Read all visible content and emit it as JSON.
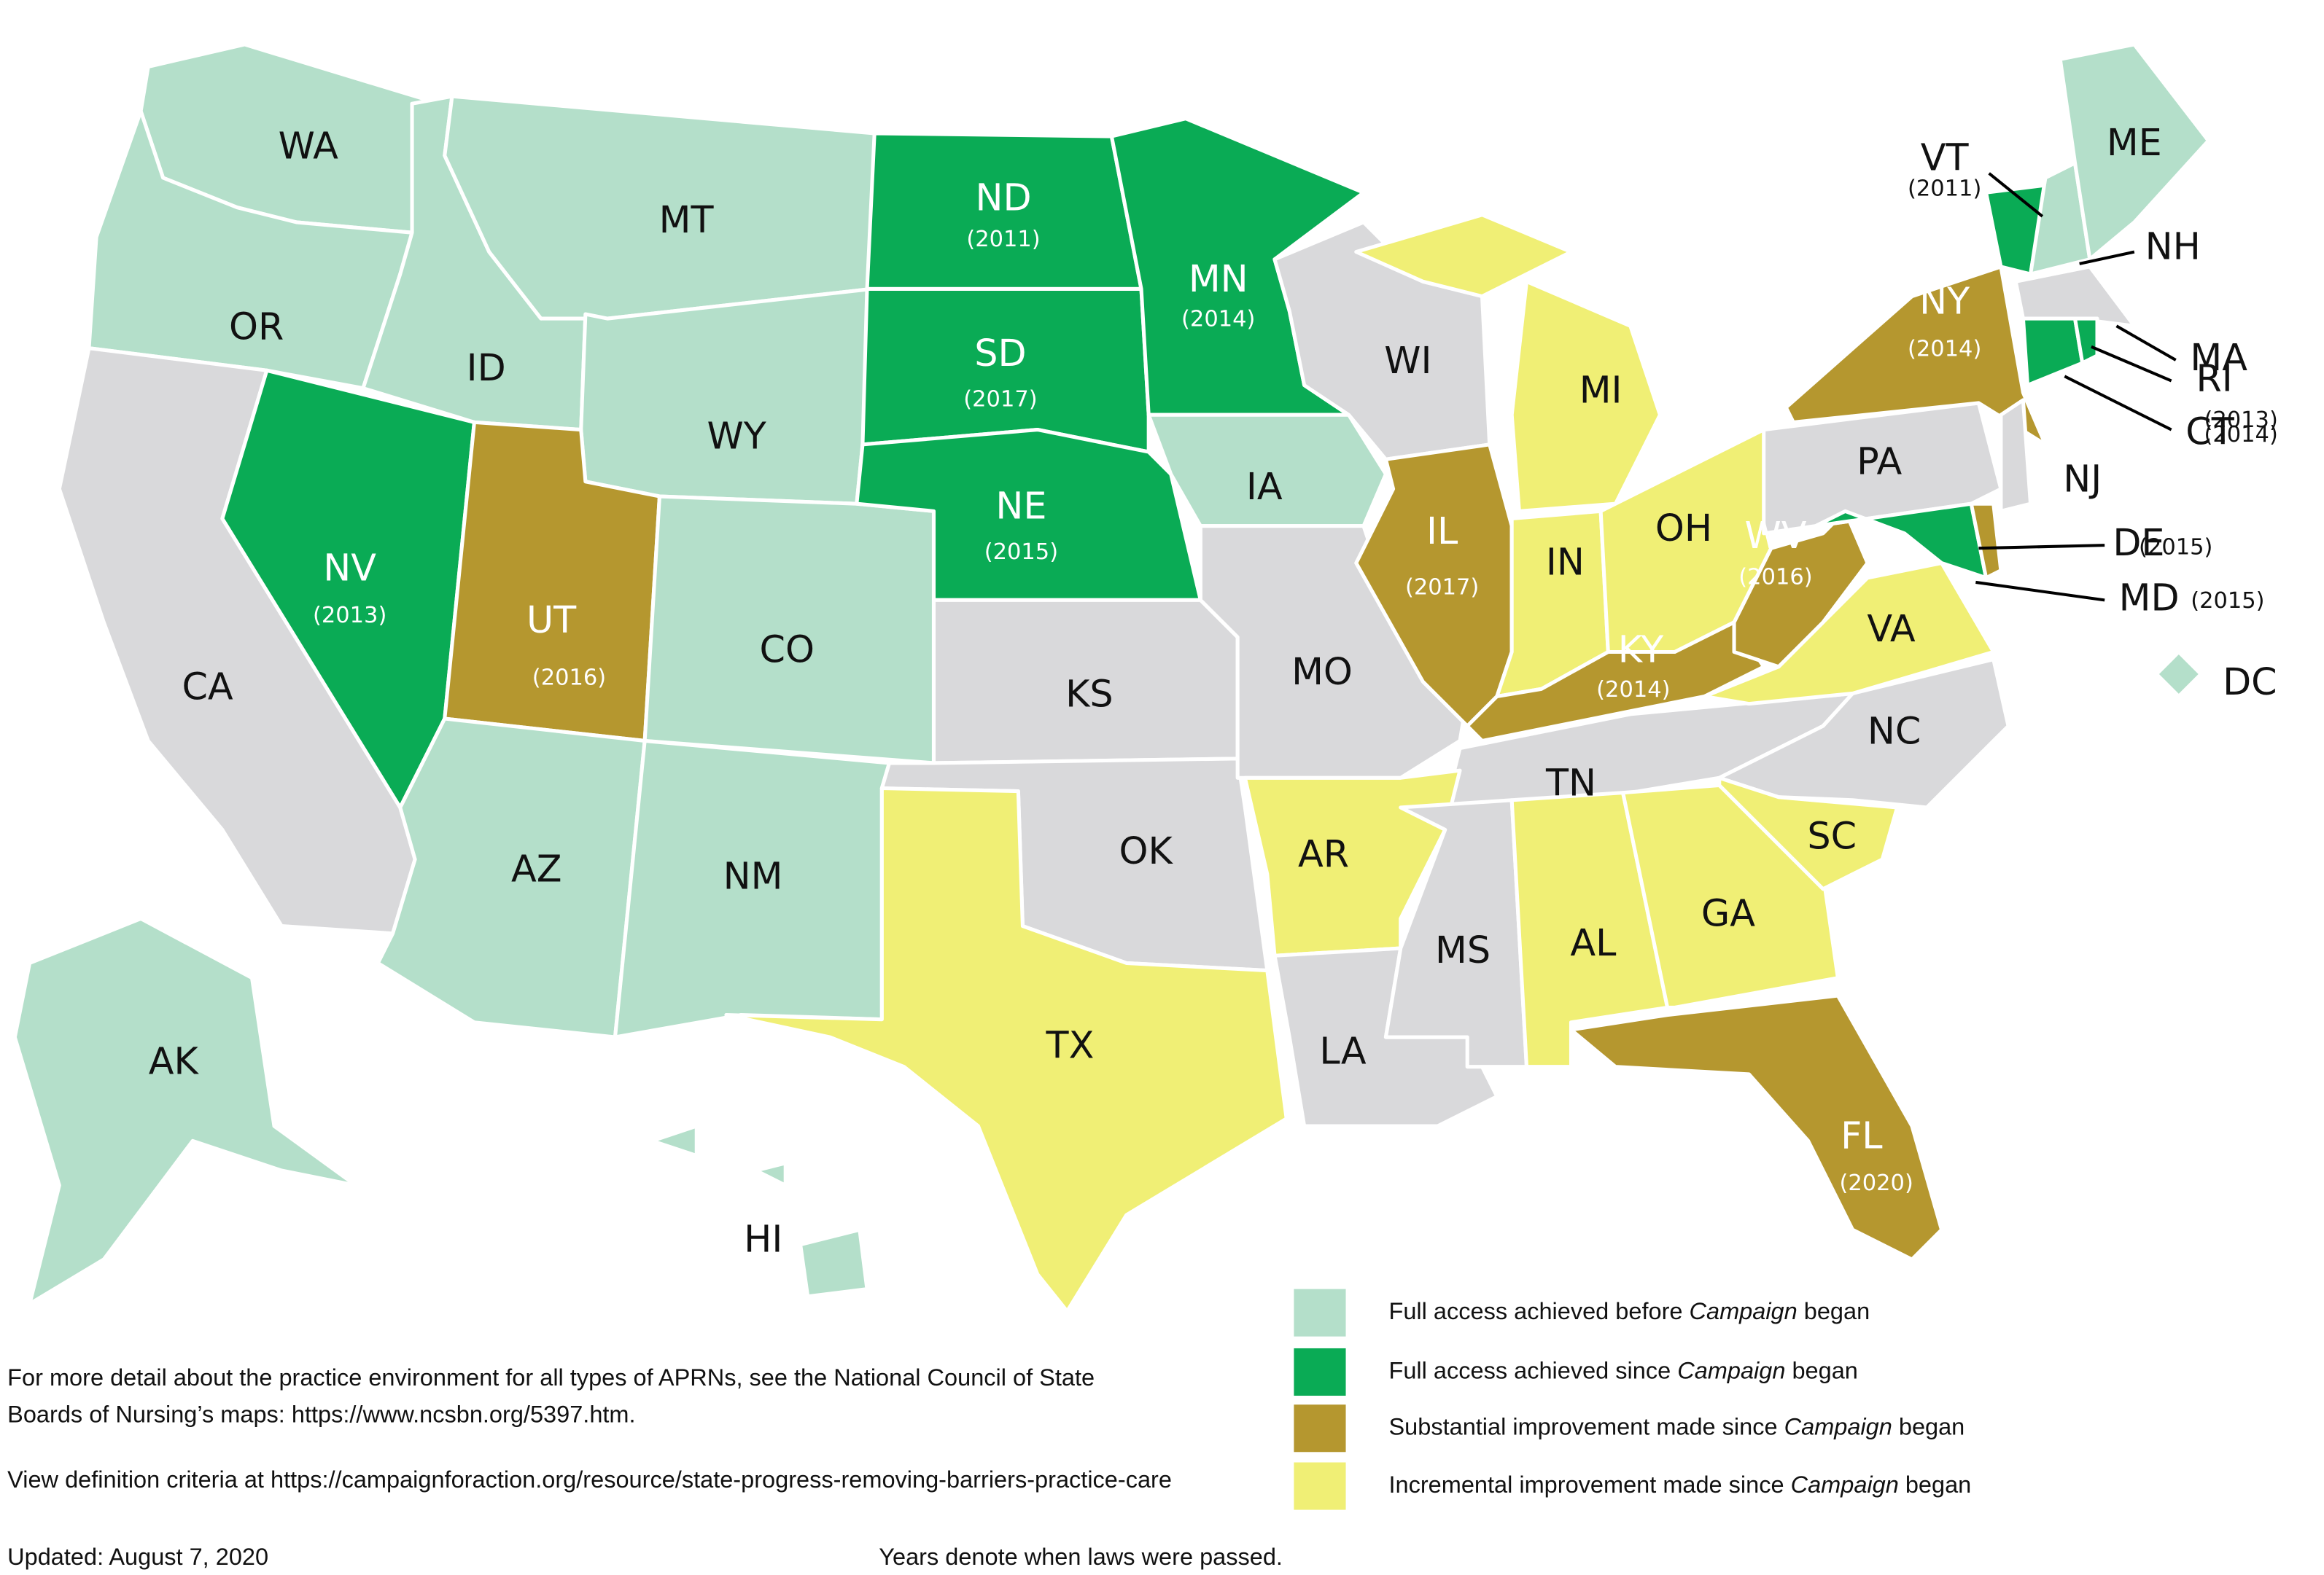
{
  "states": [
    {
      "abbr": "WA",
      "color": "#b4dfca"
    },
    {
      "abbr": "OR",
      "color": "#b4dfca"
    },
    {
      "abbr": "CA",
      "color": "#d9d9db"
    },
    {
      "abbr": "ID",
      "color": "#b4dfca"
    },
    {
      "abbr": "NV",
      "year": "(2013)",
      "color": "#0aab55"
    },
    {
      "abbr": "MT",
      "color": "#b4dfca"
    },
    {
      "abbr": "WY",
      "color": "#b4dfca"
    },
    {
      "abbr": "UT",
      "year": "(2016)",
      "color": "#b5972f"
    },
    {
      "abbr": "AZ",
      "color": "#b4dfca"
    },
    {
      "abbr": "CO",
      "color": "#b4dfca"
    },
    {
      "abbr": "NM",
      "color": "#b4dfca"
    },
    {
      "abbr": "ND",
      "year": "(2011)",
      "color": "#0aab55"
    },
    {
      "abbr": "SD",
      "year": "(2017)",
      "color": "#0aab55"
    },
    {
      "abbr": "NE",
      "year": "(2015)",
      "color": "#0aab55"
    },
    {
      "abbr": "KS",
      "color": "#d9d9db"
    },
    {
      "abbr": "OK",
      "color": "#d9d9db"
    },
    {
      "abbr": "TX",
      "color": "#f0ef75"
    },
    {
      "abbr": "MN",
      "year": "(2014)",
      "color": "#0aab55"
    },
    {
      "abbr": "IA",
      "color": "#b4dfca"
    },
    {
      "abbr": "MO",
      "color": "#d9d9db"
    },
    {
      "abbr": "WI",
      "color": "#d9d9db"
    },
    {
      "abbr": "IL",
      "year": "(2017)",
      "color": "#b5972f"
    },
    {
      "abbr": "MI",
      "color": "#f0ef75"
    },
    {
      "abbr": "IN",
      "color": "#f0ef75"
    },
    {
      "abbr": "OH",
      "color": "#f0ef75"
    },
    {
      "abbr": "KY",
      "year": "(2014)",
      "color": "#b5972f"
    },
    {
      "abbr": "TN",
      "color": "#d9d9db"
    },
    {
      "abbr": "NC",
      "color": "#d9d9db"
    },
    {
      "abbr": "AR",
      "color": "#f0ef75"
    },
    {
      "abbr": "LA",
      "color": "#d9d9db"
    },
    {
      "abbr": "MS",
      "color": "#d9d9db"
    },
    {
      "abbr": "AL",
      "color": "#f0ef75"
    },
    {
      "abbr": "GA",
      "color": "#f0ef75"
    },
    {
      "abbr": "SC",
      "color": "#f0ef75"
    },
    {
      "abbr": "FL",
      "year": "(2020)",
      "color": "#b5972f"
    },
    {
      "abbr": "VA",
      "color": "#f0ef75"
    },
    {
      "abbr": "WV",
      "year": "(2016)",
      "color": "#b5972f"
    },
    {
      "abbr": "PA",
      "color": "#d9d9db"
    },
    {
      "abbr": "NY",
      "year": "(2014)",
      "color": "#b5972f"
    },
    {
      "abbr": "MD",
      "year": "(2015)",
      "color": "#0aab55"
    },
    {
      "abbr": "DE",
      "year": "(2015)",
      "color": "#b5972f"
    },
    {
      "abbr": "NJ",
      "color": "#d9d9db"
    },
    {
      "abbr": "VT",
      "year": "(2011)",
      "color": "#0aab55"
    },
    {
      "abbr": "NH",
      "color": "#b4dfca"
    },
    {
      "abbr": "ME",
      "color": "#b4dfca"
    },
    {
      "abbr": "MA",
      "color": "#d9d9db"
    },
    {
      "abbr": "CT",
      "year": "(2014)",
      "color": "#0aab55"
    },
    {
      "abbr": "RI",
      "year": "(2013)",
      "color": "#0aab55"
    },
    {
      "abbr": "DC",
      "color": "#b4dfca"
    },
    {
      "abbr": "AK",
      "color": "#b4dfca"
    },
    {
      "abbr": "HI",
      "color": "#b4dfca"
    }
  ],
  "legend": [
    {
      "color": "#b4dfca",
      "text": "Full access achieved before ",
      "emphasis": "Campaign",
      "after": " began"
    },
    {
      "color": "#0aab55",
      "text": "Full access achieved since ",
      "emphasis": "Campaign",
      "after": " began"
    },
    {
      "color": "#b5972f",
      "text": "Substantial improvement made since ",
      "emphasis": "Campaign",
      "after": " began"
    },
    {
      "color": "#f0ef75",
      "text": "Incremental improvement made since ",
      "emphasis": "Campaign",
      "after": " began"
    }
  ],
  "notes": {
    "detail": [
      "For more detail about the practice environment for all types of APRNs, see the National Council of State",
      "Boards of Nursing’s maps: https://www.ncsbn.org/5397.htm."
    ],
    "criteria": "View definition criteria at https://campaignforaction.org/resource/state-progress-removing-barriers-practice-care",
    "updated": "Updated: August 7, 2020",
    "years": "Years denote when laws were passed."
  }
}
